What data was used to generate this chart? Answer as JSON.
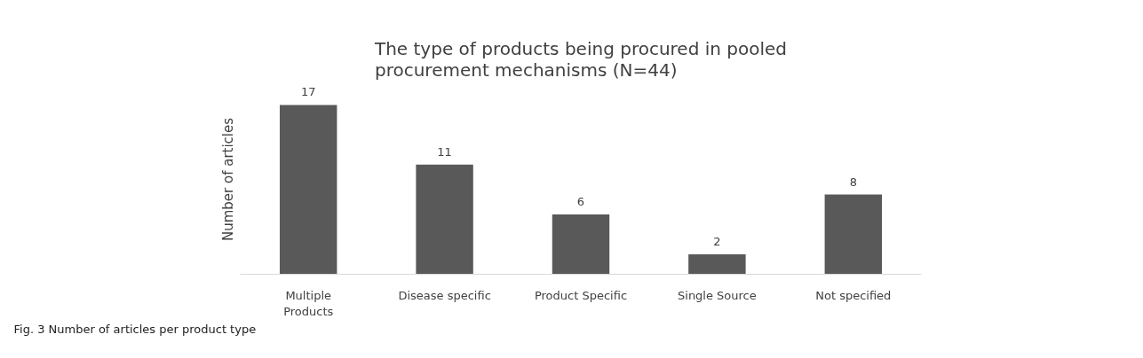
{
  "chart_data": {
    "type": "bar",
    "title": "The type of products being procured in pooled procurement mechanisms (N=44)",
    "ylabel": "Number of articles",
    "categories": [
      "Multiple Products",
      "Disease specific",
      "Product Specific",
      "Single Source",
      "Not specified"
    ],
    "values": [
      17,
      11,
      6,
      2,
      8
    ],
    "color": "#595959",
    "data_labels": true,
    "grid": false,
    "annotations": [
      "Fig. 3  Number of articles per product type"
    ]
  }
}
